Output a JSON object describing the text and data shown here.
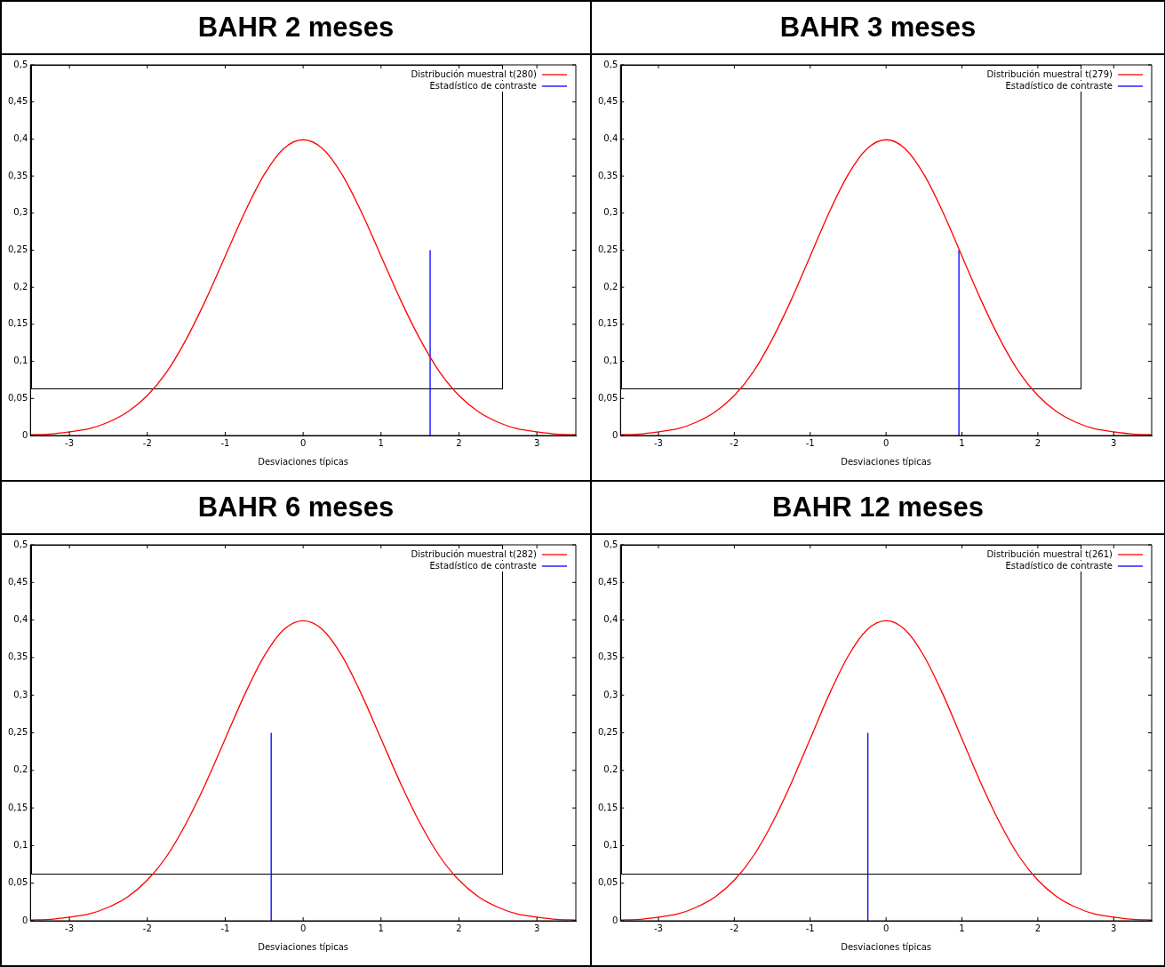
{
  "chart_data": [
    {
      "type": "line",
      "title": "BAHR 2 meses",
      "xlabel": "Desviaciones típicas",
      "legend": "top right",
      "xlim": [
        -3.5,
        3.5
      ],
      "xticks": [
        -3,
        -2,
        -1,
        0,
        1,
        2,
        3
      ],
      "ylim": [
        0,
        0.5
      ],
      "yticks": [
        {
          "value": 0,
          "label": "0"
        },
        {
          "value": 0.05,
          "label": "0,05"
        },
        {
          "value": 0.1,
          "label": "0,1"
        },
        {
          "value": 0.15,
          "label": "0,15"
        },
        {
          "value": 0.2,
          "label": "0,2"
        },
        {
          "value": 0.25,
          "label": "0,25"
        },
        {
          "value": 0.3,
          "label": "0,3"
        },
        {
          "value": 0.35,
          "label": "0,35"
        },
        {
          "value": 0.4,
          "label": "0,4"
        },
        {
          "value": 0.45,
          "label": "0,45"
        },
        {
          "value": 0.5,
          "label": "0,5"
        }
      ],
      "series": [
        {
          "name": "Distribución muestral t(280)",
          "color": "#ff0000",
          "x": [
            -3.5,
            -3.25,
            -3,
            -2.75,
            -2.5,
            -2.25,
            -2,
            -1.75,
            -1.5,
            -1.25,
            -1,
            -0.75,
            -0.5,
            -0.25,
            0,
            0.25,
            0.5,
            0.75,
            1,
            1.25,
            1.5,
            1.75,
            2,
            2.25,
            2.5,
            2.75,
            3,
            3.25,
            3.5
          ],
          "values": [
            0.001,
            0.002,
            0.005,
            0.009,
            0.018,
            0.032,
            0.054,
            0.086,
            0.13,
            0.183,
            0.242,
            0.301,
            0.352,
            0.387,
            0.399,
            0.387,
            0.352,
            0.301,
            0.242,
            0.183,
            0.13,
            0.086,
            0.054,
            0.032,
            0.018,
            0.009,
            0.005,
            0.002,
            0.001
          ]
        },
        {
          "name": "Estadístico de contraste",
          "color": "#0000ff",
          "x": [
            1.63,
            1.63
          ],
          "values": [
            0,
            0.25
          ]
        }
      ]
    },
    {
      "type": "line",
      "title": "BAHR 3 meses",
      "xlabel": "Desviaciones típicas",
      "legend": "top right",
      "xlim": [
        -3.5,
        3.5
      ],
      "xticks": [
        -3,
        -2,
        -1,
        0,
        1,
        2,
        3
      ],
      "ylim": [
        0,
        0.5
      ],
      "yticks": [
        {
          "value": 0,
          "label": "0"
        },
        {
          "value": 0.05,
          "label": "0,05"
        },
        {
          "value": 0.1,
          "label": "0,1"
        },
        {
          "value": 0.15,
          "label": "0,15"
        },
        {
          "value": 0.2,
          "label": "0,2"
        },
        {
          "value": 0.25,
          "label": "0,25"
        },
        {
          "value": 0.3,
          "label": "0,3"
        },
        {
          "value": 0.35,
          "label": "0,35"
        },
        {
          "value": 0.4,
          "label": "0,4"
        },
        {
          "value": 0.45,
          "label": "0,45"
        },
        {
          "value": 0.5,
          "label": "0,5"
        }
      ],
      "series": [
        {
          "name": "Distribución muestral t(279)",
          "color": "#ff0000",
          "x": [
            -3.5,
            -3.25,
            -3,
            -2.75,
            -2.5,
            -2.25,
            -2,
            -1.75,
            -1.5,
            -1.25,
            -1,
            -0.75,
            -0.5,
            -0.25,
            0,
            0.25,
            0.5,
            0.75,
            1,
            1.25,
            1.5,
            1.75,
            2,
            2.25,
            2.5,
            2.75,
            3,
            3.25,
            3.5
          ],
          "values": [
            0.001,
            0.002,
            0.005,
            0.009,
            0.018,
            0.032,
            0.054,
            0.086,
            0.13,
            0.183,
            0.242,
            0.301,
            0.352,
            0.387,
            0.399,
            0.387,
            0.352,
            0.301,
            0.242,
            0.183,
            0.13,
            0.086,
            0.054,
            0.032,
            0.018,
            0.009,
            0.005,
            0.002,
            0.001
          ]
        },
        {
          "name": "Estadístico de contraste",
          "color": "#0000ff",
          "x": [
            0.96,
            0.96
          ],
          "values": [
            0,
            0.25
          ]
        }
      ]
    },
    {
      "type": "line",
      "title": "BAHR 6 meses",
      "xlabel": "Desviaciones típicas",
      "legend": "top right",
      "xlim": [
        -3.5,
        3.5
      ],
      "xticks": [
        -3,
        -2,
        -1,
        0,
        1,
        2,
        3
      ],
      "ylim": [
        0,
        0.5
      ],
      "yticks": [
        {
          "value": 0,
          "label": "0"
        },
        {
          "value": 0.05,
          "label": "0,05"
        },
        {
          "value": 0.1,
          "label": "0,1"
        },
        {
          "value": 0.15,
          "label": "0,15"
        },
        {
          "value": 0.2,
          "label": "0,2"
        },
        {
          "value": 0.25,
          "label": "0,25"
        },
        {
          "value": 0.3,
          "label": "0,3"
        },
        {
          "value": 0.35,
          "label": "0,35"
        },
        {
          "value": 0.4,
          "label": "0,4"
        },
        {
          "value": 0.45,
          "label": "0,45"
        },
        {
          "value": 0.5,
          "label": "0,5"
        }
      ],
      "series": [
        {
          "name": "Distribución muestral t(282)",
          "color": "#ff0000",
          "x": [
            -3.5,
            -3.25,
            -3,
            -2.75,
            -2.5,
            -2.25,
            -2,
            -1.75,
            -1.5,
            -1.25,
            -1,
            -0.75,
            -0.5,
            -0.25,
            0,
            0.25,
            0.5,
            0.75,
            1,
            1.25,
            1.5,
            1.75,
            2,
            2.25,
            2.5,
            2.75,
            3,
            3.25,
            3.5
          ],
          "values": [
            0.001,
            0.002,
            0.005,
            0.009,
            0.018,
            0.032,
            0.054,
            0.086,
            0.13,
            0.183,
            0.242,
            0.301,
            0.352,
            0.387,
            0.399,
            0.387,
            0.352,
            0.301,
            0.242,
            0.183,
            0.13,
            0.086,
            0.054,
            0.032,
            0.018,
            0.009,
            0.005,
            0.002,
            0.001
          ]
        },
        {
          "name": "Estadístico de contraste",
          "color": "#0000ff",
          "x": [
            -0.41,
            -0.41
          ],
          "values": [
            0,
            0.25
          ]
        }
      ]
    },
    {
      "type": "line",
      "title": "BAHR 12 meses",
      "xlabel": "Desviaciones típicas",
      "legend": "top right",
      "xlim": [
        -3.5,
        3.5
      ],
      "xticks": [
        -3,
        -2,
        -1,
        0,
        1,
        2,
        3
      ],
      "ylim": [
        0,
        0.5
      ],
      "yticks": [
        {
          "value": 0,
          "label": "0"
        },
        {
          "value": 0.05,
          "label": "0,05"
        },
        {
          "value": 0.1,
          "label": "0,1"
        },
        {
          "value": 0.15,
          "label": "0,15"
        },
        {
          "value": 0.2,
          "label": "0,2"
        },
        {
          "value": 0.25,
          "label": "0,25"
        },
        {
          "value": 0.3,
          "label": "0,3"
        },
        {
          "value": 0.35,
          "label": "0,35"
        },
        {
          "value": 0.4,
          "label": "0,4"
        },
        {
          "value": 0.45,
          "label": "0,45"
        },
        {
          "value": 0.5,
          "label": "0,5"
        }
      ],
      "series": [
        {
          "name": "Distribución muestral t(261)",
          "color": "#ff0000",
          "x": [
            -3.5,
            -3.25,
            -3,
            -2.75,
            -2.5,
            -2.25,
            -2,
            -1.75,
            -1.5,
            -1.25,
            -1,
            -0.75,
            -0.5,
            -0.25,
            0,
            0.25,
            0.5,
            0.75,
            1,
            1.25,
            1.5,
            1.75,
            2,
            2.25,
            2.5,
            2.75,
            3,
            3.25,
            3.5
          ],
          "values": [
            0.001,
            0.002,
            0.005,
            0.009,
            0.018,
            0.032,
            0.054,
            0.086,
            0.13,
            0.183,
            0.242,
            0.301,
            0.352,
            0.387,
            0.399,
            0.387,
            0.352,
            0.301,
            0.242,
            0.183,
            0.13,
            0.086,
            0.054,
            0.032,
            0.018,
            0.009,
            0.005,
            0.002,
            0.001
          ]
        },
        {
          "name": "Estadístico de contraste",
          "color": "#0000ff",
          "x": [
            -0.24,
            -0.24
          ],
          "values": [
            0,
            0.25
          ]
        }
      ]
    }
  ]
}
